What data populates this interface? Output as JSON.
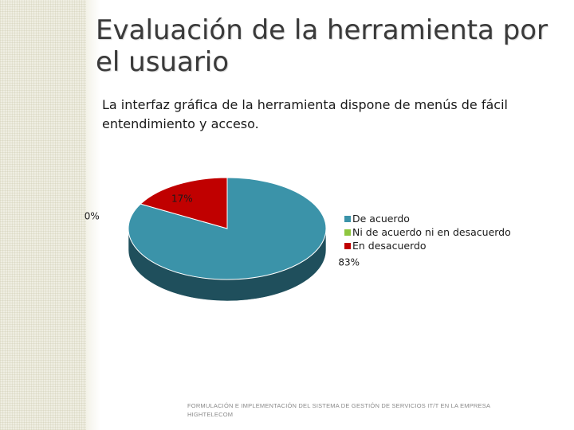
{
  "slide": {
    "title": "Evaluación de la herramienta por el usuario",
    "subtitle": "La interfaz gráfica de la herramienta dispone de menús de fácil entendimiento y acceso.",
    "footer": "FORMULACIÓN E IMPLEMENTACIÓN DEL SISTEMA DE GESTIÓN DE SERVICIOS IT/T EN LA EMPRESA HIGHTELECOM"
  },
  "chart_data": {
    "type": "pie",
    "style": "3d",
    "legend_position": "right",
    "series": [
      {
        "name": "De acuerdo",
        "value": 83,
        "label": "83%",
        "color": "#3b93a9",
        "side_color": "#1f4f5c"
      },
      {
        "name": "Ni de acuerdo ni en desacuerdo",
        "value": 0,
        "label": "0%",
        "color": "#8ec63f",
        "side_color": "#5d8a22"
      },
      {
        "name": "En desacuerdo",
        "value": 17,
        "label": "17%",
        "color": "#c00000",
        "side_color": "#7a0000"
      }
    ]
  }
}
